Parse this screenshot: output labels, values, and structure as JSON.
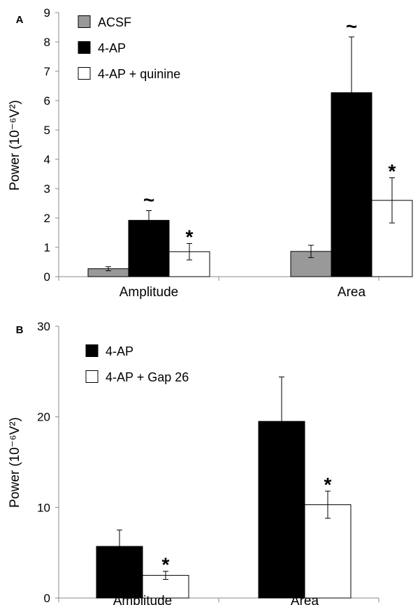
{
  "chart_data": [
    {
      "panel_label": "A",
      "type": "bar",
      "categories": [
        "Amplitude",
        "Area"
      ],
      "series": [
        {
          "name": "ACSF",
          "values": [
            0.27,
            0.86
          ],
          "errors": [
            0.07,
            0.21
          ],
          "color": "#999999"
        },
        {
          "name": "4-AP",
          "values": [
            1.92,
            6.27
          ],
          "errors": [
            0.33,
            1.9
          ],
          "color": "#000000"
        },
        {
          "name": "4-AP + quinine",
          "values": [
            0.85,
            2.6
          ],
          "errors": [
            0.28,
            0.77
          ],
          "color": "#ffffff"
        }
      ],
      "annotations": [
        {
          "category": "Amplitude",
          "series": "4-AP",
          "symbol": "~"
        },
        {
          "category": "Amplitude",
          "series": "4-AP + quinine",
          "symbol": "*"
        },
        {
          "category": "Area",
          "series": "4-AP",
          "symbol": "~"
        },
        {
          "category": "Area",
          "series": "4-AP + quinine",
          "symbol": "*"
        }
      ],
      "ylabel": "Power (10⁻⁶V²)",
      "xlabel": "",
      "ylim": [
        0,
        9
      ],
      "yticks": [
        "0",
        "1",
        "2",
        "3",
        "4",
        "5",
        "6",
        "7",
        "8",
        "9"
      ],
      "grid": false,
      "legend_position": "top-left"
    },
    {
      "panel_label": "B",
      "type": "bar",
      "categories": [
        "Amplitude",
        "Area"
      ],
      "series": [
        {
          "name": "4-AP",
          "values": [
            5.7,
            19.5
          ],
          "errors": [
            1.8,
            4.9
          ],
          "color": "#000000"
        },
        {
          "name": "4-AP + Gap 26",
          "values": [
            2.5,
            10.3
          ],
          "errors": [
            0.45,
            1.5
          ],
          "color": "#ffffff"
        }
      ],
      "annotations": [
        {
          "category": "Amplitude",
          "series": "4-AP + Gap 26",
          "symbol": "*"
        },
        {
          "category": "Area",
          "series": "4-AP + Gap 26",
          "symbol": "*"
        }
      ],
      "ylabel": "Power (10⁻⁶V²)",
      "xlabel": "",
      "ylim": [
        0,
        30
      ],
      "yticks": [
        "0",
        "10",
        "20",
        "30"
      ],
      "grid": false,
      "legend_position": "top-left"
    }
  ]
}
